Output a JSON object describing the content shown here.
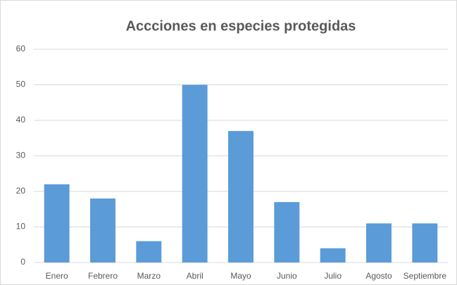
{
  "chart_data": {
    "type": "bar",
    "title": "Accciones en especies protegidas",
    "categories": [
      "Enero",
      "Febrero",
      "Marzo",
      "Abril",
      "Mayo",
      "Junio",
      "Julio",
      "Agosto",
      "Septiembre"
    ],
    "values": [
      22,
      18,
      6,
      50,
      37,
      17,
      4,
      11,
      11
    ],
    "color": "#5a9bd8",
    "ylim": [
      0,
      60
    ],
    "yticks": [
      0,
      10,
      20,
      30,
      40,
      50,
      60
    ],
    "grid": true
  }
}
